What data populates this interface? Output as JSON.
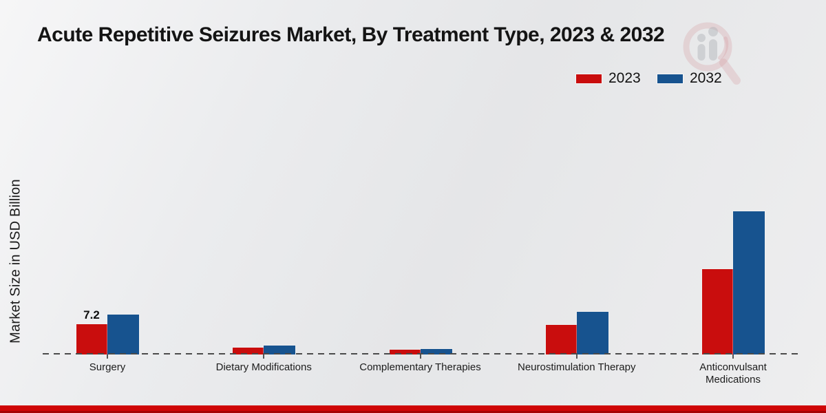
{
  "title": "Acute Repetitive Seizures Market, By Treatment Type, 2023 & 2032",
  "ylabel": "Market Size in USD Billion",
  "legend": [
    {
      "label": "2023",
      "color": "#c90d0d"
    },
    {
      "label": "2032",
      "color": "#17538f"
    }
  ],
  "colors": {
    "bar_2023": "#c90d0d",
    "bar_2032": "#17538f",
    "axis_dash": "#4a4a4a",
    "bottom_strip": "#c90606",
    "background": "#e9eaec"
  },
  "watermark": "magnifier-bar-chart-logo",
  "chart_data": {
    "type": "bar",
    "title": "Acute Repetitive Seizures Market, By Treatment Type, 2023 & 2032",
    "xlabel": "",
    "ylabel": "Market Size in USD Billion",
    "categories": [
      "Surgery",
      "Dietary Modifications",
      "Complementary Therapies",
      "Neurostimulation Therapy",
      "Anticonvulsant Medications"
    ],
    "series": [
      {
        "name": "2023",
        "values": [
          7.2,
          1.6,
          1.1,
          7.1,
          20.5
        ]
      },
      {
        "name": "2032",
        "values": [
          9.6,
          2.2,
          1.3,
          10.3,
          34.2
        ]
      }
    ],
    "annotations": [
      {
        "category_index": 0,
        "series": "2023",
        "text": "7.2"
      }
    ],
    "ylim": [
      0,
      60
    ],
    "grid": false,
    "y_axis_ticks_visible": false,
    "legend_position": "top-right",
    "baseline_style": "dashed"
  }
}
